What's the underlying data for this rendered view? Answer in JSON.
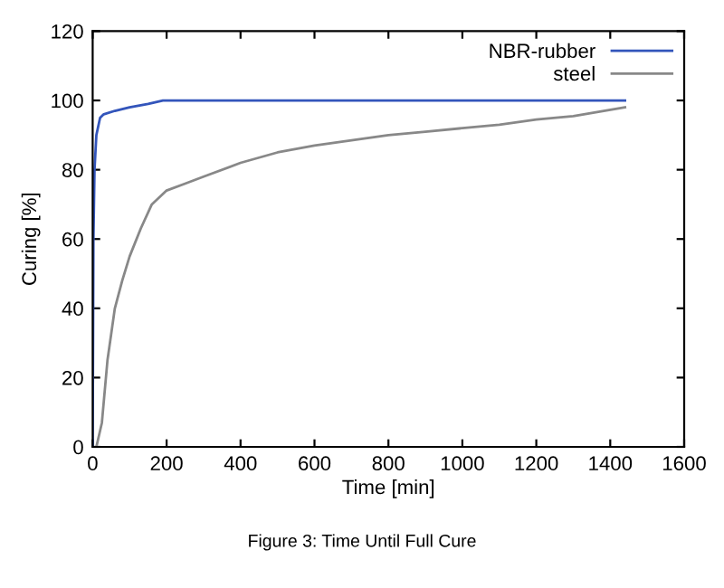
{
  "chart_data": {
    "type": "line",
    "xlabel": "Time [min]",
    "ylabel": "Curing [%]",
    "annotations": [
      "Figure 3: Time Until Full Cure"
    ],
    "xlim": [
      0,
      1600
    ],
    "xticks": [
      0,
      200,
      400,
      600,
      800,
      1000,
      1200,
      1400,
      1600
    ],
    "ylim": [
      0,
      120
    ],
    "yticks": [
      0,
      20,
      40,
      60,
      80,
      100,
      120
    ],
    "grid": false,
    "legend": "top right",
    "marker": "none",
    "line_style": "solid",
    "series": [
      {
        "name": "NBR-rubber",
        "color": "#3355bb",
        "x": [
          0,
          2,
          5,
          10,
          20,
          30,
          60,
          100,
          150,
          190,
          400,
          800,
          1200,
          1440
        ],
        "values": [
          0,
          60,
          80,
          90,
          95,
          96,
          97,
          98,
          99,
          100,
          100,
          100,
          100,
          100
        ]
      },
      {
        "name": "steel",
        "color": "#888888",
        "x": [
          10,
          25,
          40,
          60,
          80,
          100,
          130,
          160,
          200,
          250,
          300,
          400,
          500,
          600,
          700,
          800,
          900,
          1000,
          1100,
          1200,
          1300,
          1440
        ],
        "values": [
          0,
          7,
          25,
          40,
          48,
          55,
          63,
          70,
          74,
          76,
          78,
          82,
          85,
          87,
          88.5,
          90,
          91,
          92,
          93,
          94.5,
          95.5,
          98
        ]
      }
    ]
  }
}
